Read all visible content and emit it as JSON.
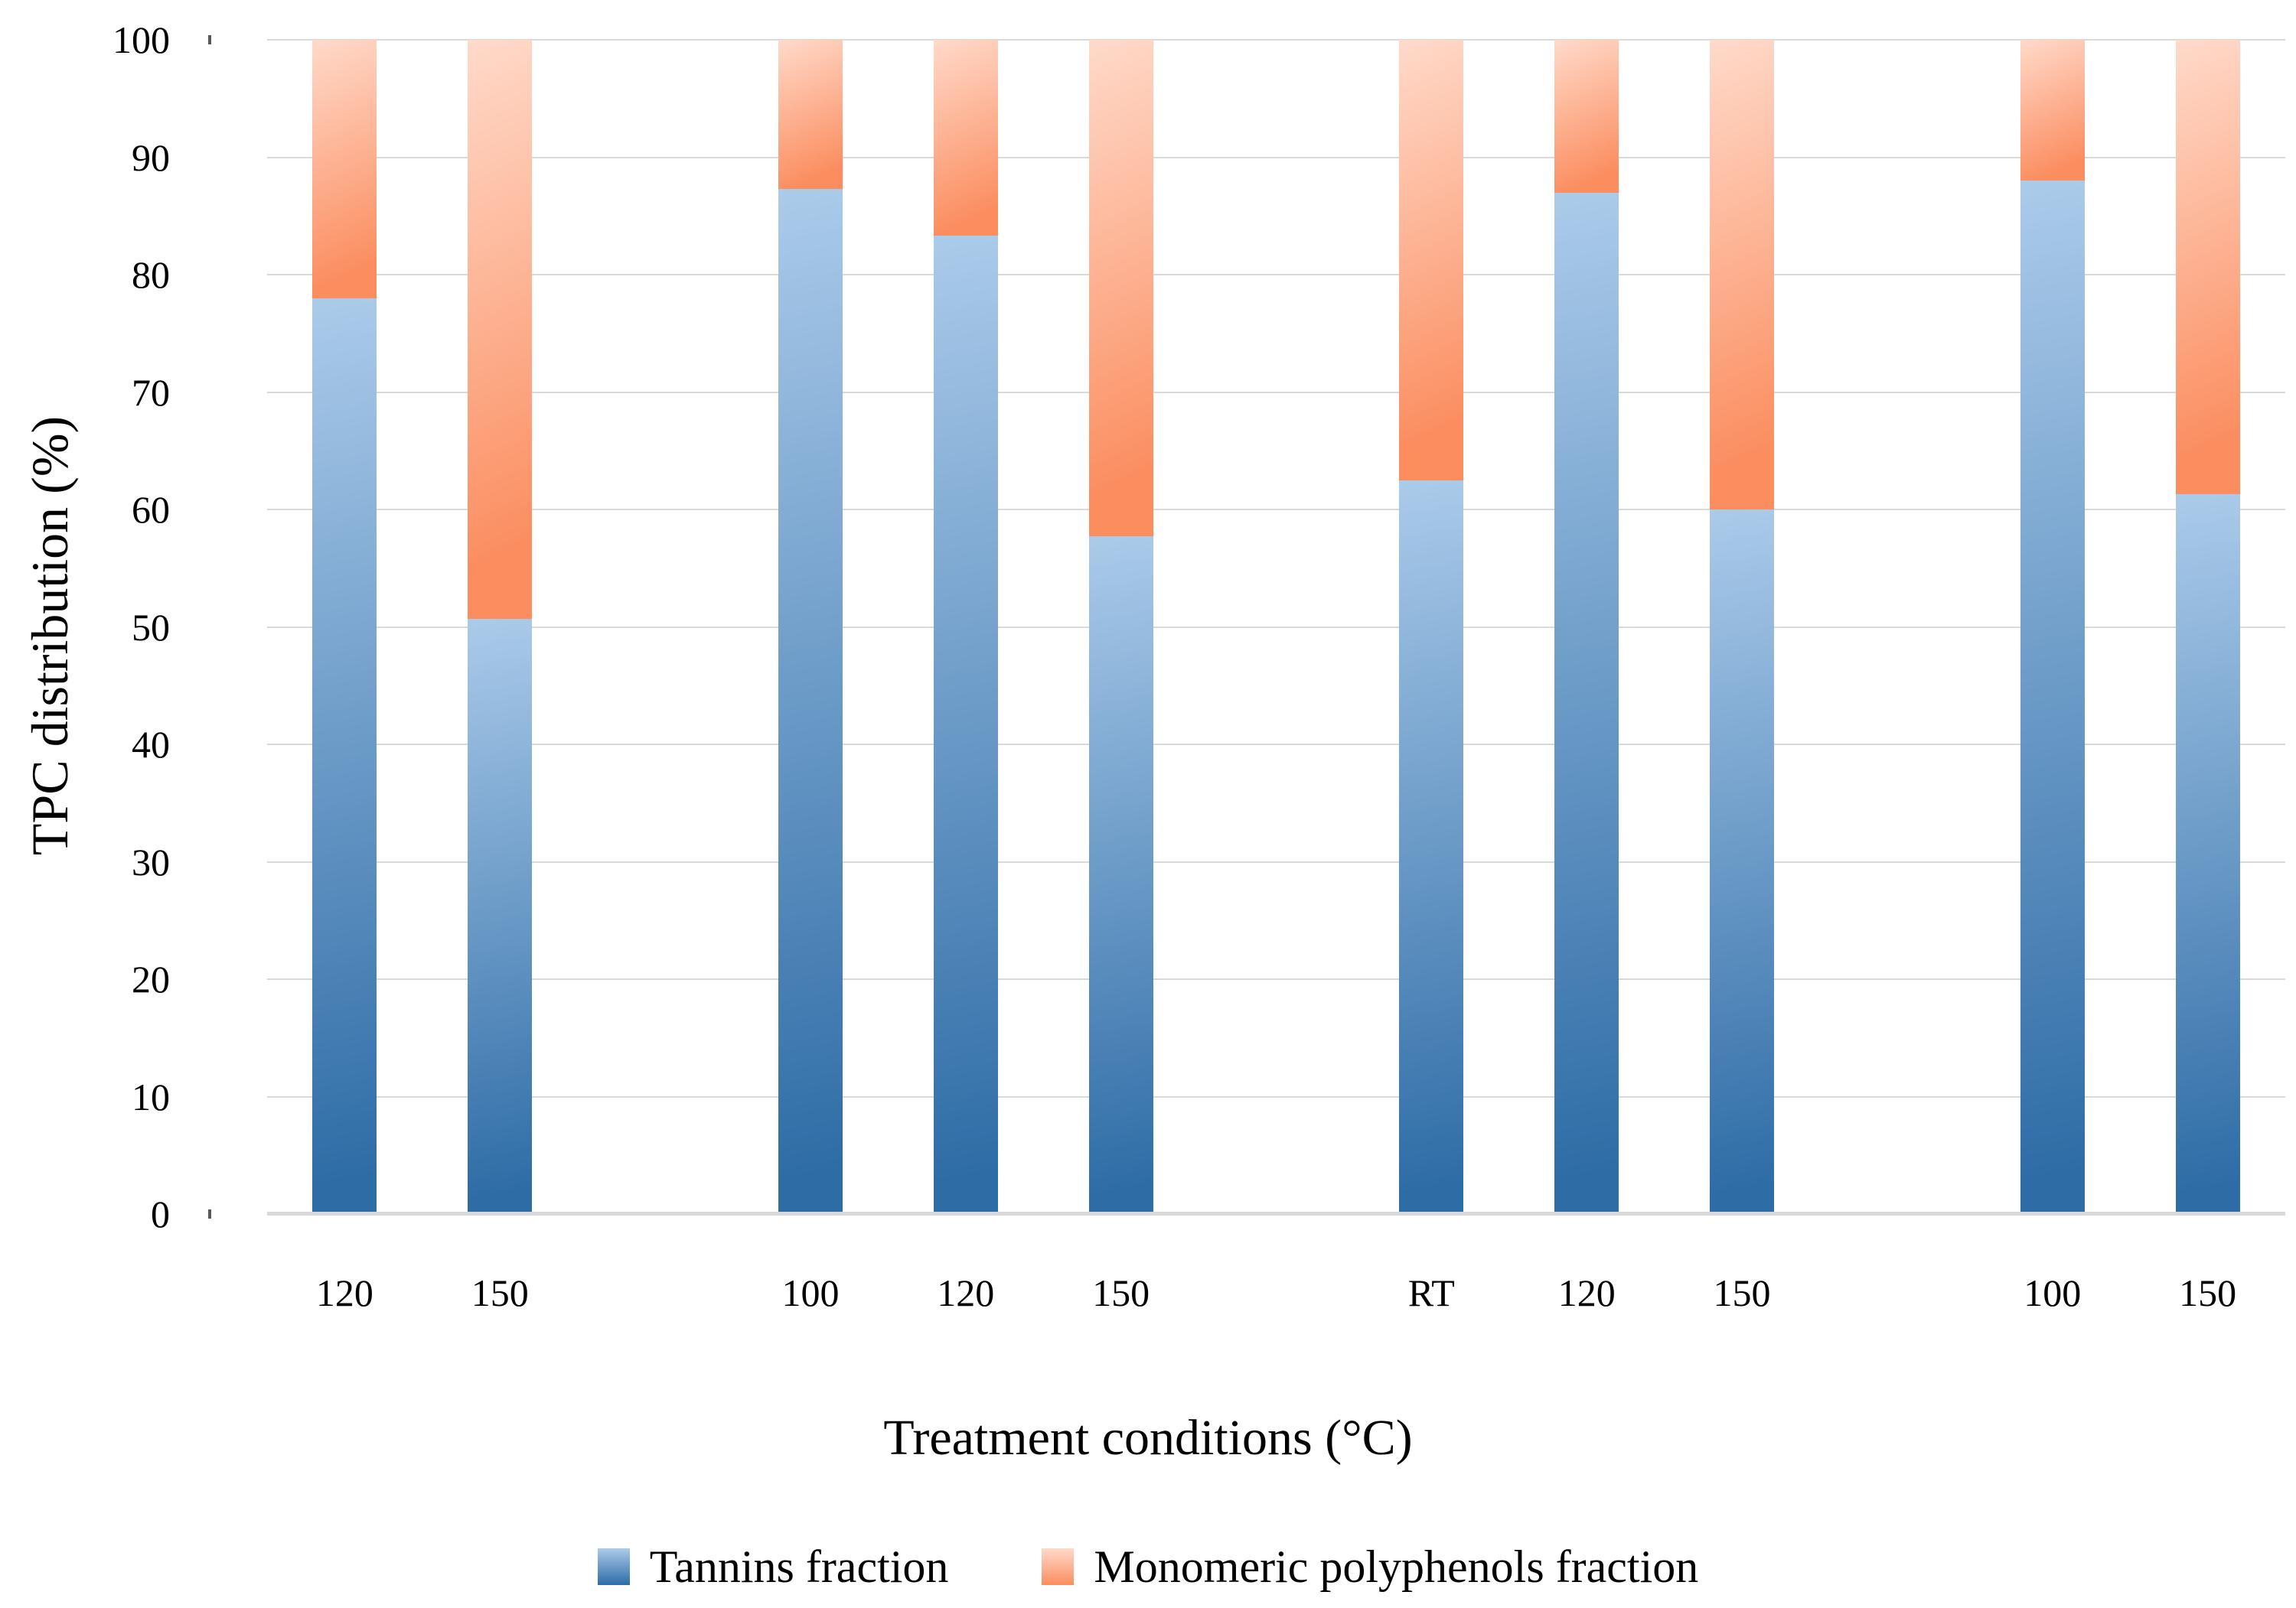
{
  "chart_data": {
    "type": "bar",
    "stacked": true,
    "title": "",
    "xlabel": "Treatment conditions (°C)",
    "ylabel": "TPC distribution (%)",
    "ylim": [
      0,
      100
    ],
    "yticks": [
      0,
      10,
      20,
      30,
      40,
      50,
      60,
      70,
      80,
      90,
      100
    ],
    "grid": "horizontal",
    "legend_position": "bottom",
    "total_slots": 13,
    "categories": [
      "120",
      "150",
      "100",
      "120",
      "150",
      "RT",
      "120",
      "150",
      "100",
      "150"
    ],
    "slot_index": [
      0,
      1,
      3,
      4,
      5,
      7,
      8,
      9,
      11,
      12
    ],
    "series": [
      {
        "name": "Tannins fraction",
        "values": [
          78.0,
          50.7,
          87.3,
          83.3,
          57.7,
          62.5,
          87.0,
          60.0,
          88.0,
          61.3
        ],
        "color_light": "#ABCBEA",
        "color_dark": "#2E6CA6"
      },
      {
        "name": "Monomeric polyphenols fraction",
        "values": [
          22.0,
          49.3,
          12.7,
          16.7,
          42.3,
          37.5,
          13.0,
          40.0,
          12.0,
          38.7
        ],
        "color_light": "#FFDACA",
        "color_dark": "#FB8D5F"
      }
    ]
  }
}
